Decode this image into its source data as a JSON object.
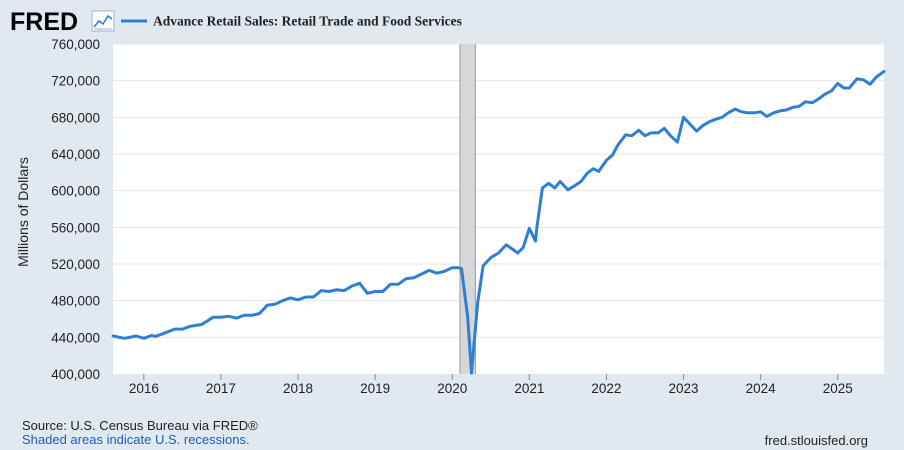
{
  "header": {
    "logo_text": "FRED",
    "legend_label": "Advance Retail Sales: Retail Trade and Food Services"
  },
  "footer": {
    "source": "Source: U.S. Census Bureau via FRED®",
    "recession_note": "Shaded areas indicate U.S. recessions.",
    "site": "fred.stlouisfed.org"
  },
  "colors": {
    "background": "#e1e9f0",
    "plot_background": "#ffffff",
    "series": "#2e7fd4",
    "recession": "#d7d7d9",
    "grid": "#e6e6e6",
    "link": "#1f5fad"
  },
  "chart_data": {
    "type": "line",
    "title": "Advance Retail Sales: Retail Trade and Food Services",
    "xlabel": "",
    "ylabel": "Millions of Dollars",
    "xlim": [
      2015.6,
      2025.6
    ],
    "ylim": [
      400000,
      760000
    ],
    "yticks": [
      400000,
      440000,
      480000,
      520000,
      560000,
      600000,
      640000,
      680000,
      720000,
      760000
    ],
    "ytick_labels": [
      "400,000",
      "440,000",
      "480,000",
      "520,000",
      "560,000",
      "600,000",
      "640,000",
      "680,000",
      "720,000",
      "760,000"
    ],
    "xticks": [
      2016,
      2017,
      2018,
      2019,
      2020,
      2021,
      2022,
      2023,
      2024,
      2025
    ],
    "xtick_labels": [
      "2016",
      "2017",
      "2018",
      "2019",
      "2020",
      "2021",
      "2022",
      "2023",
      "2024",
      "2025"
    ],
    "grid": true,
    "recessions": [
      [
        2020.1,
        2020.3
      ]
    ],
    "series": [
      {
        "name": "Advance Retail Sales: Retail Trade and Food Services",
        "x": [
          2015.6,
          2015.75,
          2015.9,
          2016.0,
          2016.1,
          2016.15,
          2016.25,
          2016.4,
          2016.5,
          2016.6,
          2016.75,
          2016.9,
          2017.0,
          2017.1,
          2017.2,
          2017.3,
          2017.4,
          2017.5,
          2017.6,
          2017.7,
          2017.8,
          2017.9,
          2018.0,
          2018.1,
          2018.2,
          2018.3,
          2018.4,
          2018.5,
          2018.6,
          2018.7,
          2018.8,
          2018.9,
          2019.0,
          2019.1,
          2019.2,
          2019.3,
          2019.4,
          2019.5,
          2019.6,
          2019.7,
          2019.8,
          2019.9,
          2020.0,
          2020.08,
          2020.12,
          2020.2,
          2020.25,
          2020.33,
          2020.4,
          2020.5,
          2020.6,
          2020.7,
          2020.75,
          2020.85,
          2020.92,
          2021.0,
          2021.08,
          2021.1,
          2021.17,
          2021.25,
          2021.33,
          2021.4,
          2021.5,
          2021.58,
          2021.67,
          2021.75,
          2021.83,
          2021.9,
          2022.0,
          2022.08,
          2022.15,
          2022.25,
          2022.33,
          2022.42,
          2022.5,
          2022.58,
          2022.67,
          2022.75,
          2022.83,
          2022.92,
          2023.0,
          2023.08,
          2023.17,
          2023.25,
          2023.33,
          2023.42,
          2023.5,
          2023.58,
          2023.67,
          2023.75,
          2023.83,
          2023.92,
          2024.0,
          2024.08,
          2024.17,
          2024.25,
          2024.33,
          2024.42,
          2024.5,
          2024.58,
          2024.67,
          2024.75,
          2024.83,
          2024.92,
          2025.0,
          2025.08,
          2025.15,
          2025.25,
          2025.33,
          2025.42,
          2025.5,
          2025.6
        ],
        "values": [
          441500,
          439000,
          441500,
          439000,
          442000,
          441000,
          444000,
          449000,
          449000,
          452000,
          454000,
          462000,
          462000,
          463000,
          461000,
          464000,
          464000,
          466000,
          475000,
          476000,
          480000,
          483000,
          481000,
          484000,
          484000,
          491000,
          490000,
          492000,
          491000,
          496000,
          499000,
          488000,
          490000,
          490000,
          498000,
          498000,
          504000,
          505000,
          509000,
          513000,
          510000,
          512000,
          516000,
          516000,
          515000,
          462000,
          401000,
          478000,
          518000,
          527000,
          532000,
          541000,
          538000,
          532000,
          538000,
          559000,
          545000,
          561000,
          603000,
          608000,
          603000,
          610000,
          601000,
          605000,
          610000,
          619000,
          624000,
          621000,
          633000,
          639000,
          650000,
          661000,
          660000,
          666000,
          660000,
          663000,
          663000,
          668000,
          660000,
          653000,
          680000,
          673000,
          665000,
          671000,
          675000,
          678000,
          680000,
          685000,
          689000,
          686000,
          685000,
          685000,
          686000,
          681000,
          685000,
          687000,
          688000,
          691000,
          692000,
          697000,
          696000,
          700000,
          705000,
          709000,
          717000,
          712000,
          712000,
          722000,
          721000,
          716000,
          724000,
          730000
        ]
      }
    ]
  }
}
